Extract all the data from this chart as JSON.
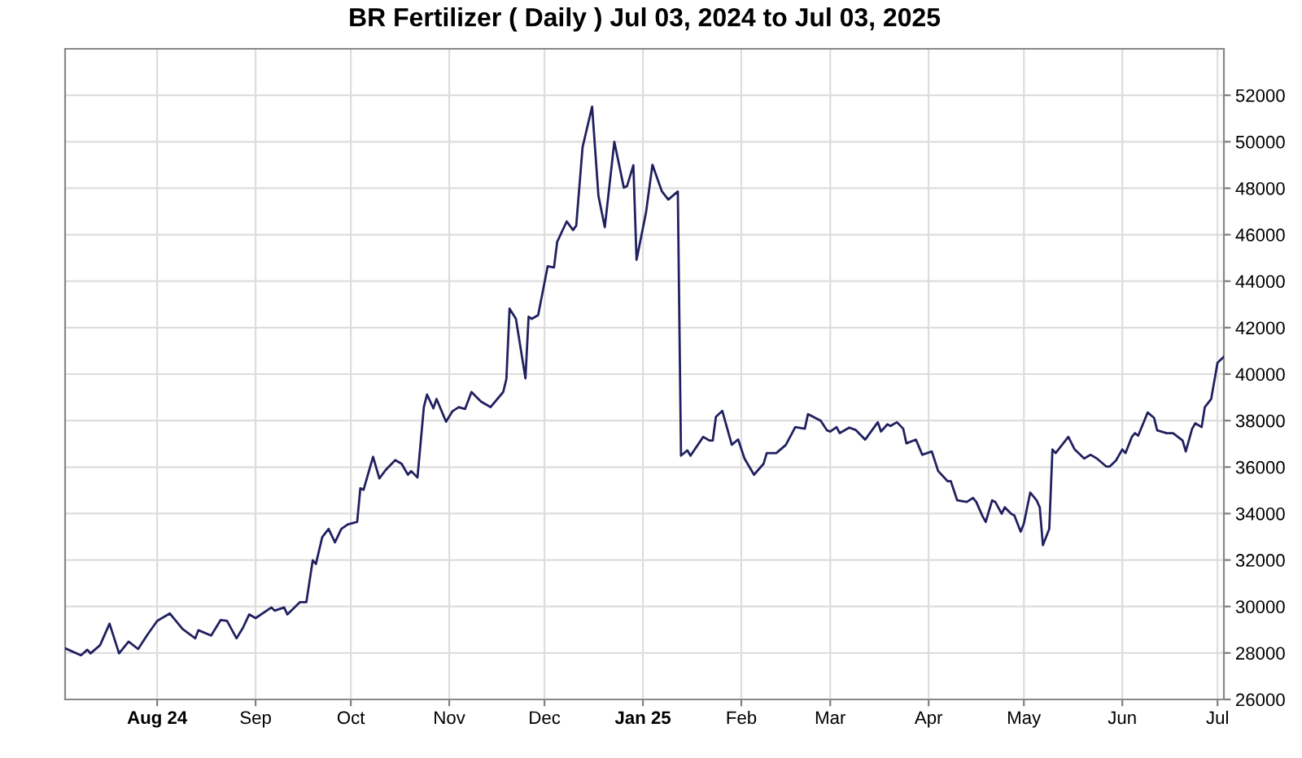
{
  "chart_data": {
    "type": "line",
    "title": "BR Fertilizer ( Daily ) Jul 03, 2024 to Jul 03, 2025",
    "x": [
      "2024-07-03",
      "2024-07-08",
      "2024-07-10",
      "2024-07-11",
      "2024-07-14",
      "2024-07-17",
      "2024-07-20",
      "2024-07-23",
      "2024-07-26",
      "2024-07-29",
      "2024-08-01",
      "2024-08-05",
      "2024-08-09",
      "2024-08-13",
      "2024-08-14",
      "2024-08-18",
      "2024-08-21",
      "2024-08-23",
      "2024-08-26",
      "2024-08-28",
      "2024-08-30",
      "2024-09-01",
      "2024-09-06",
      "2024-09-07",
      "2024-09-10",
      "2024-09-11",
      "2024-09-15",
      "2024-09-17",
      "2024-09-19",
      "2024-09-20",
      "2024-09-22",
      "2024-09-24",
      "2024-09-26",
      "2024-09-28",
      "2024-09-30",
      "2024-10-03",
      "2024-10-04",
      "2024-10-05",
      "2024-10-08",
      "2024-10-10",
      "2024-10-12",
      "2024-10-15",
      "2024-10-17",
      "2024-10-19",
      "2024-10-20",
      "2024-10-22",
      "2024-10-24",
      "2024-10-25",
      "2024-10-27",
      "2024-10-28",
      "2024-10-31",
      "2024-11-02",
      "2024-11-04",
      "2024-11-06",
      "2024-11-08",
      "2024-11-11",
      "2024-11-14",
      "2024-11-18",
      "2024-11-19",
      "2024-11-20",
      "2024-11-22",
      "2024-11-25",
      "2024-11-26",
      "2024-11-27",
      "2024-11-29",
      "2024-12-02",
      "2024-12-04",
      "2024-12-05",
      "2024-12-08",
      "2024-12-10",
      "2024-12-11",
      "2024-12-13",
      "2024-12-14",
      "2024-12-16",
      "2024-12-18",
      "2024-12-20",
      "2024-12-23",
      "2024-12-26",
      "2024-12-27",
      "2024-12-29",
      "2024-12-30",
      "2025-01-02",
      "2025-01-04",
      "2025-01-07",
      "2025-01-09",
      "2025-01-12",
      "2025-01-13",
      "2025-01-15",
      "2025-01-16",
      "2025-01-20",
      "2025-01-22",
      "2025-01-23",
      "2025-01-24",
      "2025-01-26",
      "2025-01-29",
      "2025-01-31",
      "2025-02-02",
      "2025-02-05",
      "2025-02-08",
      "2025-02-09",
      "2025-02-12",
      "2025-02-15",
      "2025-02-18",
      "2025-02-21",
      "2025-02-22",
      "2025-02-26",
      "2025-02-28",
      "2025-03-01",
      "2025-03-03",
      "2025-03-04",
      "2025-03-07",
      "2025-03-09",
      "2025-03-12",
      "2025-03-16",
      "2025-03-17",
      "2025-03-19",
      "2025-03-20",
      "2025-03-22",
      "2025-03-24",
      "2025-03-25",
      "2025-03-28",
      "2025-03-30",
      "2025-04-02",
      "2025-04-04",
      "2025-04-07",
      "2025-04-08",
      "2025-04-10",
      "2025-04-13",
      "2025-04-15",
      "2025-04-16",
      "2025-04-18",
      "2025-04-19",
      "2025-04-21",
      "2025-04-22",
      "2025-04-24",
      "2025-04-25",
      "2025-04-27",
      "2025-04-28",
      "2025-04-30",
      "2025-05-01",
      "2025-05-03",
      "2025-05-05",
      "2025-05-06",
      "2025-05-07",
      "2025-05-09",
      "2025-05-10",
      "2025-05-11",
      "2025-05-15",
      "2025-05-17",
      "2025-05-20",
      "2025-05-22",
      "2025-05-24",
      "2025-05-27",
      "2025-05-28",
      "2025-05-30",
      "2025-06-01",
      "2025-06-02",
      "2025-06-04",
      "2025-06-05",
      "2025-06-06",
      "2025-06-09",
      "2025-06-11",
      "2025-06-12",
      "2025-06-15",
      "2025-06-17",
      "2025-06-20",
      "2025-06-21",
      "2025-06-23",
      "2025-06-24",
      "2025-06-26",
      "2025-06-27",
      "2025-06-29",
      "2025-07-01",
      "2025-07-03"
    ],
    "series": [
      {
        "color": "#202060",
        "values": [
          28200,
          27900,
          28140,
          27980,
          28330,
          29260,
          27980,
          28490,
          28170,
          28800,
          29380,
          29700,
          29030,
          28630,
          28980,
          28750,
          29420,
          29380,
          28630,
          29080,
          29660,
          29500,
          29960,
          29820,
          29960,
          29660,
          30190,
          30190,
          31990,
          31830,
          32990,
          33340,
          32760,
          33340,
          33530,
          33640,
          35090,
          35020,
          36440,
          35510,
          35880,
          36300,
          36140,
          35670,
          35830,
          35550,
          38580,
          39120,
          38530,
          38930,
          37950,
          38400,
          38580,
          38500,
          39230,
          38820,
          38580,
          39230,
          39790,
          42820,
          42380,
          39820,
          42470,
          42380,
          42540,
          44640,
          44590,
          45690,
          46570,
          46200,
          46390,
          49770,
          50350,
          51510,
          47670,
          46320,
          50000,
          48020,
          48090,
          48990,
          44920,
          46970,
          49010,
          47860,
          47510,
          47860,
          36490,
          36720,
          36490,
          37300,
          37140,
          37140,
          38160,
          38420,
          36960,
          37190,
          36370,
          35670,
          36140,
          36600,
          36600,
          36950,
          37720,
          37650,
          38280,
          38000,
          37580,
          37530,
          37720,
          37460,
          37700,
          37600,
          37180,
          37930,
          37530,
          37840,
          37770,
          37930,
          37650,
          37020,
          37180,
          36530,
          36670,
          35830,
          35390,
          35390,
          34570,
          34500,
          34670,
          34500,
          33880,
          33640,
          34570,
          34500,
          33990,
          34270,
          33990,
          33920,
          33220,
          33570,
          34900,
          34570,
          34270,
          32640,
          33340,
          36760,
          36600,
          37300,
          36760,
          36370,
          36530,
          36370,
          36020,
          36020,
          36280,
          36760,
          36600,
          37300,
          37460,
          37350,
          38350,
          38120,
          37580,
          37460,
          37460,
          37140,
          36670,
          37650,
          37880,
          37720,
          38580,
          38930,
          40490,
          40750
        ]
      }
    ],
    "xlim": [
      "2024-07-03",
      "2025-07-03"
    ],
    "xticks": [
      {
        "value": "2024-08-01",
        "label": "Aug 24"
      },
      {
        "value": "2024-09-01",
        "label": "Sep"
      },
      {
        "value": "2024-10-01",
        "label": "Oct"
      },
      {
        "value": "2024-11-01",
        "label": "Nov"
      },
      {
        "value": "2024-12-01",
        "label": "Dec"
      },
      {
        "value": "2025-01-01",
        "label": "Jan 25"
      },
      {
        "value": "2025-02-01",
        "label": "Feb"
      },
      {
        "value": "2025-03-01",
        "label": "Mar"
      },
      {
        "value": "2025-04-01",
        "label": "Apr"
      },
      {
        "value": "2025-05-01",
        "label": "May"
      },
      {
        "value": "2025-06-01",
        "label": "Jun"
      },
      {
        "value": "2025-07-01",
        "label": "Jul"
      }
    ],
    "ylim": [
      26000,
      54000
    ],
    "yticks": [
      26000,
      28000,
      30000,
      32000,
      34000,
      36000,
      38000,
      40000,
      42000,
      44000,
      46000,
      48000,
      50000,
      52000
    ],
    "grid": true,
    "marker": "none",
    "line_style": "solid"
  }
}
